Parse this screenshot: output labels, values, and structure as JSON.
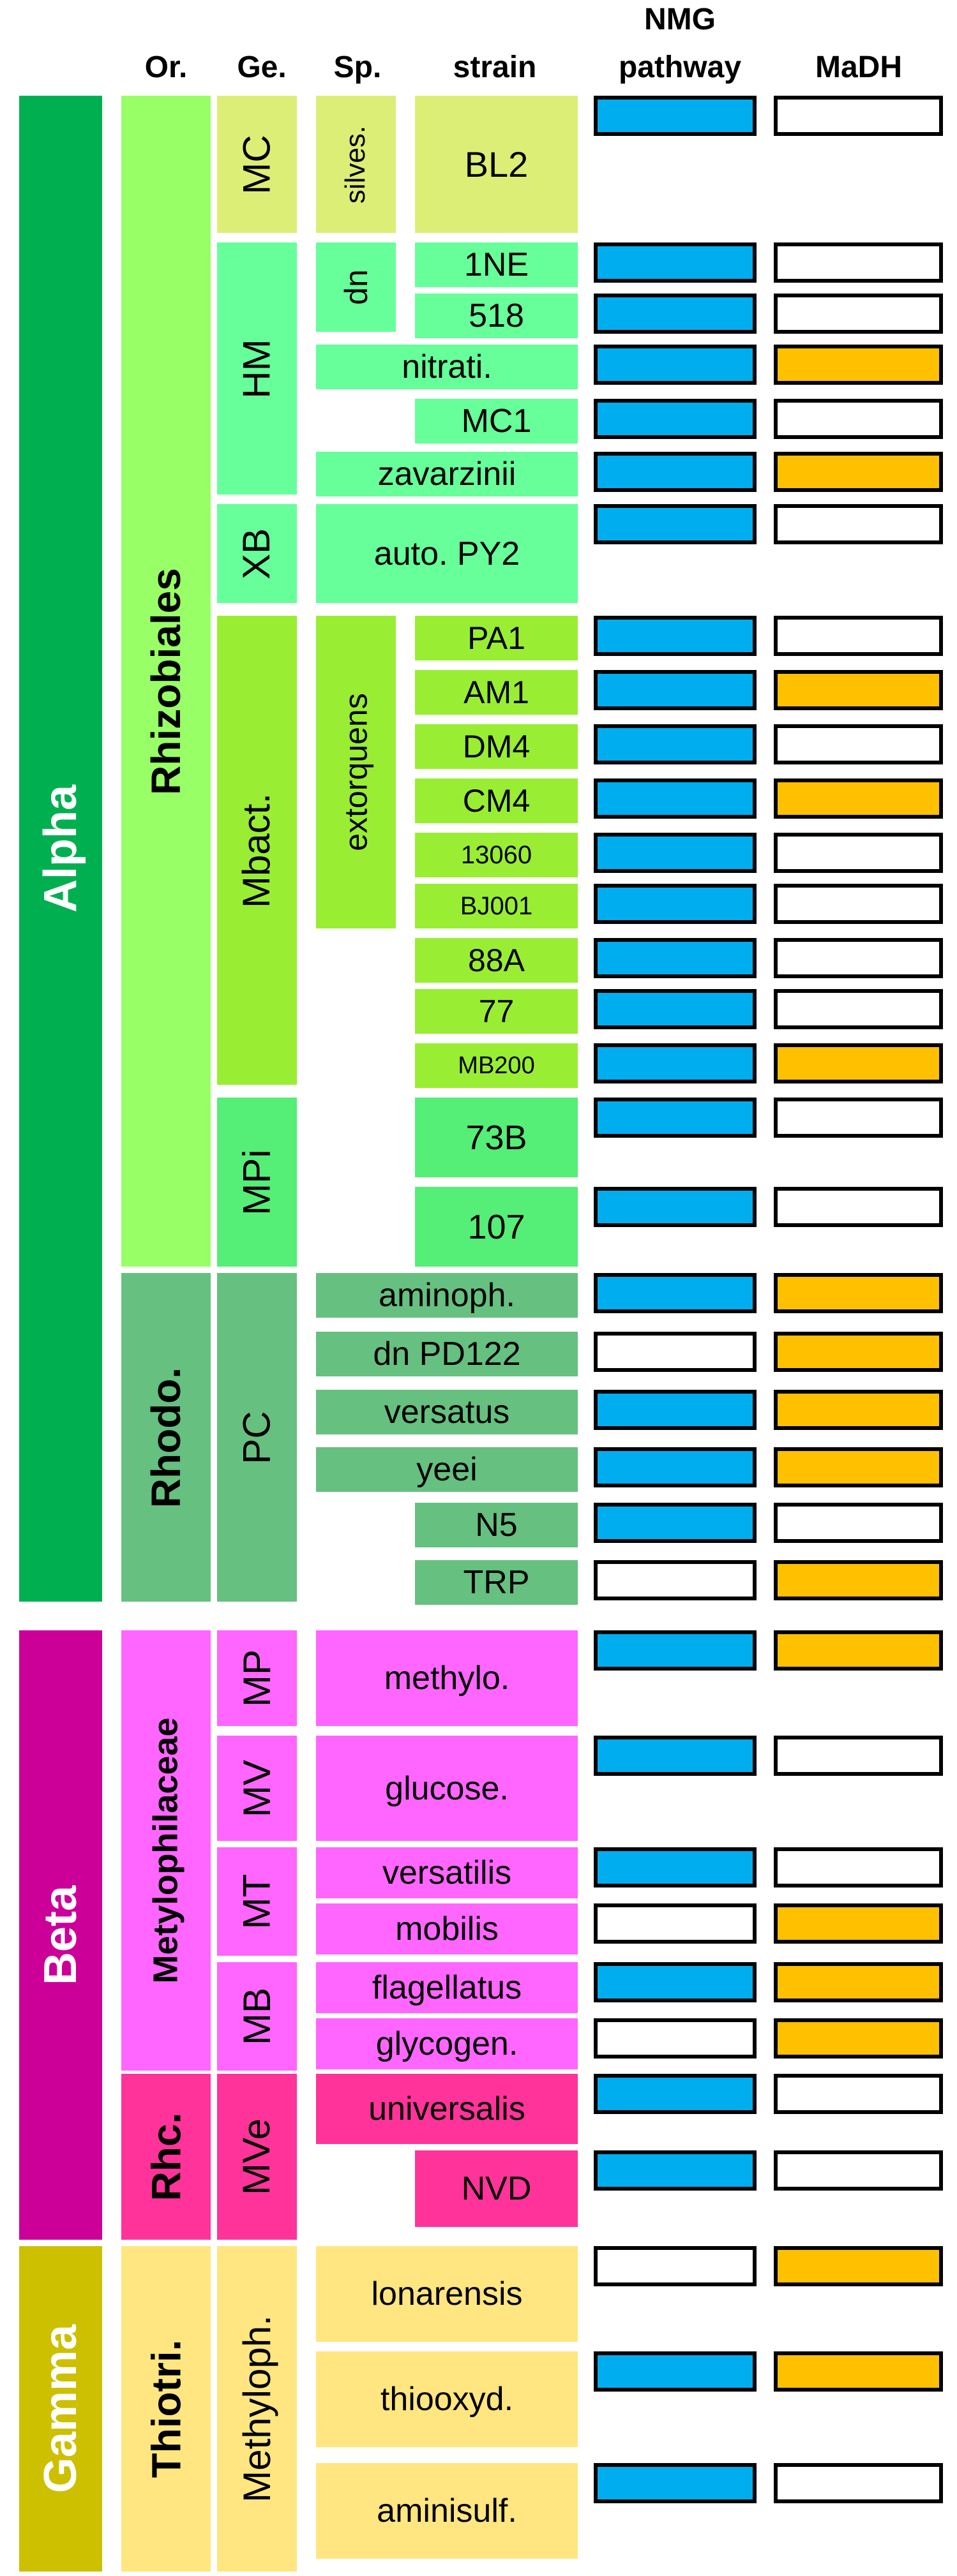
{
  "headers": {
    "order": "Or.",
    "genus": "Ge.",
    "species": "Sp.",
    "strain": "strain",
    "nmg_line1": "NMG",
    "nmg_line2": "pathway",
    "madh": "MaDH"
  },
  "colors": {
    "present_nmg": "#00AEEF",
    "present_madh": "#FFC000",
    "absent": "#FFFFFF",
    "alpha": "#00B050",
    "beta": "#CC0099",
    "gamma": "#CCC000"
  },
  "classes": [
    "Alpha",
    "Beta",
    "Gamma"
  ],
  "orders": [
    "Rhizobiales",
    "Rhodo.",
    "Metylophilaceae",
    "Rhc.",
    "Thiotri."
  ],
  "genera": [
    "MC",
    "HM",
    "XB",
    "Mbact.",
    "MPi",
    "PC",
    "MP",
    "MV",
    "MT",
    "MB",
    "MVe",
    "Methyloph."
  ],
  "species": [
    "silves.",
    "dn",
    "nitrati.",
    "zavarzinii",
    "auto. PY2",
    "extorquens",
    "aminoph.",
    "dn PD122",
    "versatus",
    "yeei",
    "methylo.",
    "glucose.",
    "versatilis",
    "mobilis",
    "flagellatus",
    "glycogen.",
    "universalis",
    "lonarensis",
    "thiooxyd.",
    "aminisulf."
  ],
  "strains": [
    "BL2",
    "1NE",
    "518",
    "MC1",
    "PA1",
    "AM1",
    "DM4",
    "CM4",
    "13060",
    "BJ001",
    "88A",
    "77",
    "MB200",
    "73B",
    "107",
    "N5",
    "TRP",
    "NVD"
  ],
  "rows": [
    {
      "nmg": true,
      "madh": false
    },
    {
      "nmg": true,
      "madh": false
    },
    {
      "nmg": true,
      "madh": false
    },
    {
      "nmg": true,
      "madh": true
    },
    {
      "nmg": true,
      "madh": false
    },
    {
      "nmg": true,
      "madh": true
    },
    {
      "nmg": true,
      "madh": false
    },
    {
      "nmg": true,
      "madh": false
    },
    {
      "nmg": true,
      "madh": true
    },
    {
      "nmg": true,
      "madh": false
    },
    {
      "nmg": true,
      "madh": true
    },
    {
      "nmg": true,
      "madh": false
    },
    {
      "nmg": true,
      "madh": false
    },
    {
      "nmg": true,
      "madh": false
    },
    {
      "nmg": true,
      "madh": false
    },
    {
      "nmg": true,
      "madh": true
    },
    {
      "nmg": true,
      "madh": false
    },
    {
      "nmg": true,
      "madh": false
    },
    {
      "nmg": true,
      "madh": true
    },
    {
      "nmg": false,
      "madh": true
    },
    {
      "nmg": true,
      "madh": true
    },
    {
      "nmg": true,
      "madh": true
    },
    {
      "nmg": true,
      "madh": false
    },
    {
      "nmg": false,
      "madh": true
    },
    {
      "nmg": true,
      "madh": true
    },
    {
      "nmg": true,
      "madh": false
    },
    {
      "nmg": true,
      "madh": false
    },
    {
      "nmg": false,
      "madh": true
    },
    {
      "nmg": true,
      "madh": true
    },
    {
      "nmg": false,
      "madh": true
    },
    {
      "nmg": true,
      "madh": false
    },
    {
      "nmg": true,
      "madh": false
    },
    {
      "nmg": false,
      "madh": true
    },
    {
      "nmg": true,
      "madh": true
    },
    {
      "nmg": true,
      "madh": false
    }
  ]
}
